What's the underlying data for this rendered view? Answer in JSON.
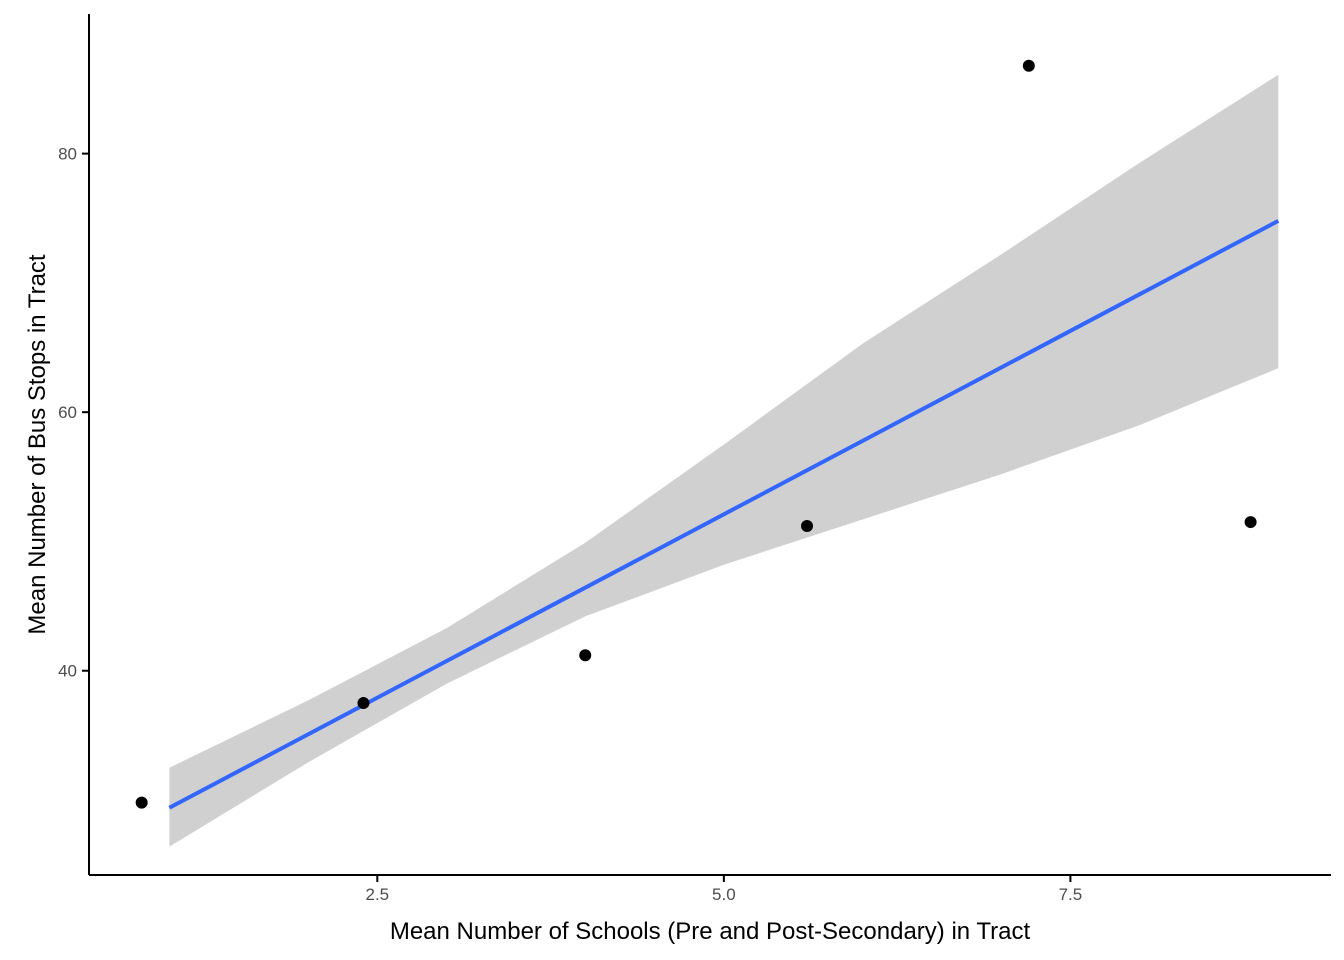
{
  "chart_data": {
    "type": "scatter",
    "title": "",
    "xlabel": "Mean Number of Schools (Pre and Post-Secondary) in Tract",
    "ylabel": "Mean Number of Bus Stops in Tract",
    "xlim": [
      0.42,
      9.38
    ],
    "ylim": [
      24.2,
      90.8
    ],
    "x_ticks": [
      2.5,
      5.0,
      7.5
    ],
    "x_tick_labels": [
      "2.5",
      "5.0",
      "7.5"
    ],
    "y_ticks": [
      40,
      60,
      80
    ],
    "y_tick_labels": [
      "40",
      "60",
      "80"
    ],
    "grid": false,
    "legend": "none",
    "points": [
      {
        "x": 0.8,
        "y": 29.8
      },
      {
        "x": 2.4,
        "y": 37.5
      },
      {
        "x": 4.0,
        "y": 41.2
      },
      {
        "x": 5.6,
        "y": 51.2
      },
      {
        "x": 7.2,
        "y": 86.8
      },
      {
        "x": 8.8,
        "y": 51.5
      }
    ],
    "fit_line": {
      "x": [
        1.0,
        9.0
      ],
      "y": [
        29.4,
        74.8
      ]
    },
    "confidence_band": {
      "x": [
        1.0,
        2.0,
        3.0,
        4.0,
        5.0,
        6.0,
        7.0,
        8.0,
        9.0
      ],
      "lower": [
        26.4,
        32.9,
        39.0,
        44.2,
        48.2,
        51.7,
        55.2,
        59.0,
        63.4
      ],
      "upper": [
        32.5,
        37.7,
        43.3,
        49.9,
        57.5,
        65.3,
        72.2,
        79.3,
        86.1
      ]
    },
    "colors": {
      "points": "#000000",
      "fit_line": "#3366ff",
      "band": "#d0d0d0",
      "axis": "#000000"
    }
  }
}
